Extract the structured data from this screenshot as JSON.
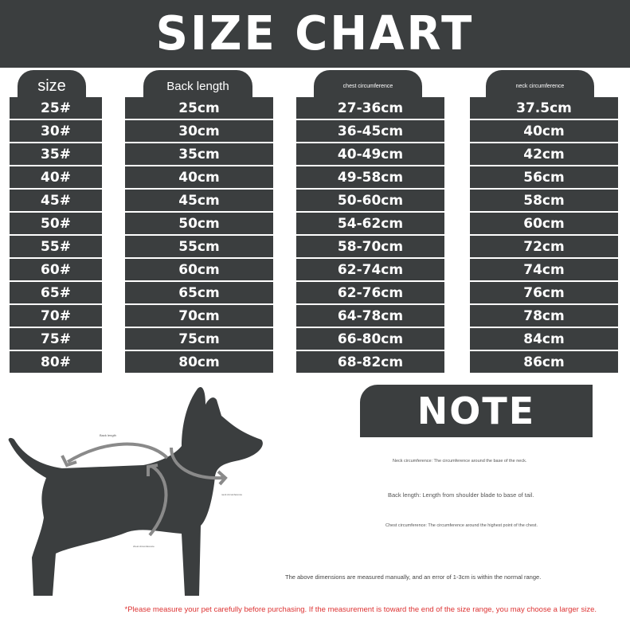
{
  "title": "SIZE CHART",
  "headers": {
    "size": "size",
    "back": "Back length",
    "chest": "chest circumference",
    "neck": "neck circumference"
  },
  "sizes": [
    "25#",
    "30#",
    "35#",
    "40#",
    "45#",
    "50#",
    "55#",
    "60#",
    "65#",
    "70#",
    "75#",
    "80#"
  ],
  "back_length": [
    "25cm",
    "30cm",
    "35cm",
    "40cm",
    "45cm",
    "50cm",
    "55cm",
    "60cm",
    "65cm",
    "70cm",
    "75cm",
    "80cm"
  ],
  "chest": [
    "27-36cm",
    "36-45cm",
    "40-49cm",
    "49-58cm",
    "50-60cm",
    "54-62cm",
    "58-70cm",
    "62-74cm",
    "62-76cm",
    "64-78cm",
    "66-80cm",
    "68-82cm"
  ],
  "neck": [
    "37.5cm",
    "40cm",
    "42cm",
    "56cm",
    "58cm",
    "60cm",
    "72cm",
    "74cm",
    "76cm",
    "78cm",
    "84cm",
    "86cm"
  ],
  "diagram": {
    "back_label": "Back length",
    "neck_label": "neck circumference",
    "chest_label": "chest circumference"
  },
  "note": {
    "title": "NOTE",
    "neck": "Neck circumference: The circumference around the base of the neck.",
    "back": "Back length: Length from shoulder blade to base of tail.",
    "chest": "Chest circumference: The circumference around the highest point of the chest.",
    "error": "The above dimensions are measured manually, and an error of 1-3cm is within the normal range.",
    "warning": "*Please measure your pet carefully before purchasing. If the measurement is toward the end of the size range, you may choose a larger size."
  },
  "colors": {
    "dark": "#3b3e3f",
    "arrow": "#8a8a8a",
    "warning": "#dd3333"
  }
}
